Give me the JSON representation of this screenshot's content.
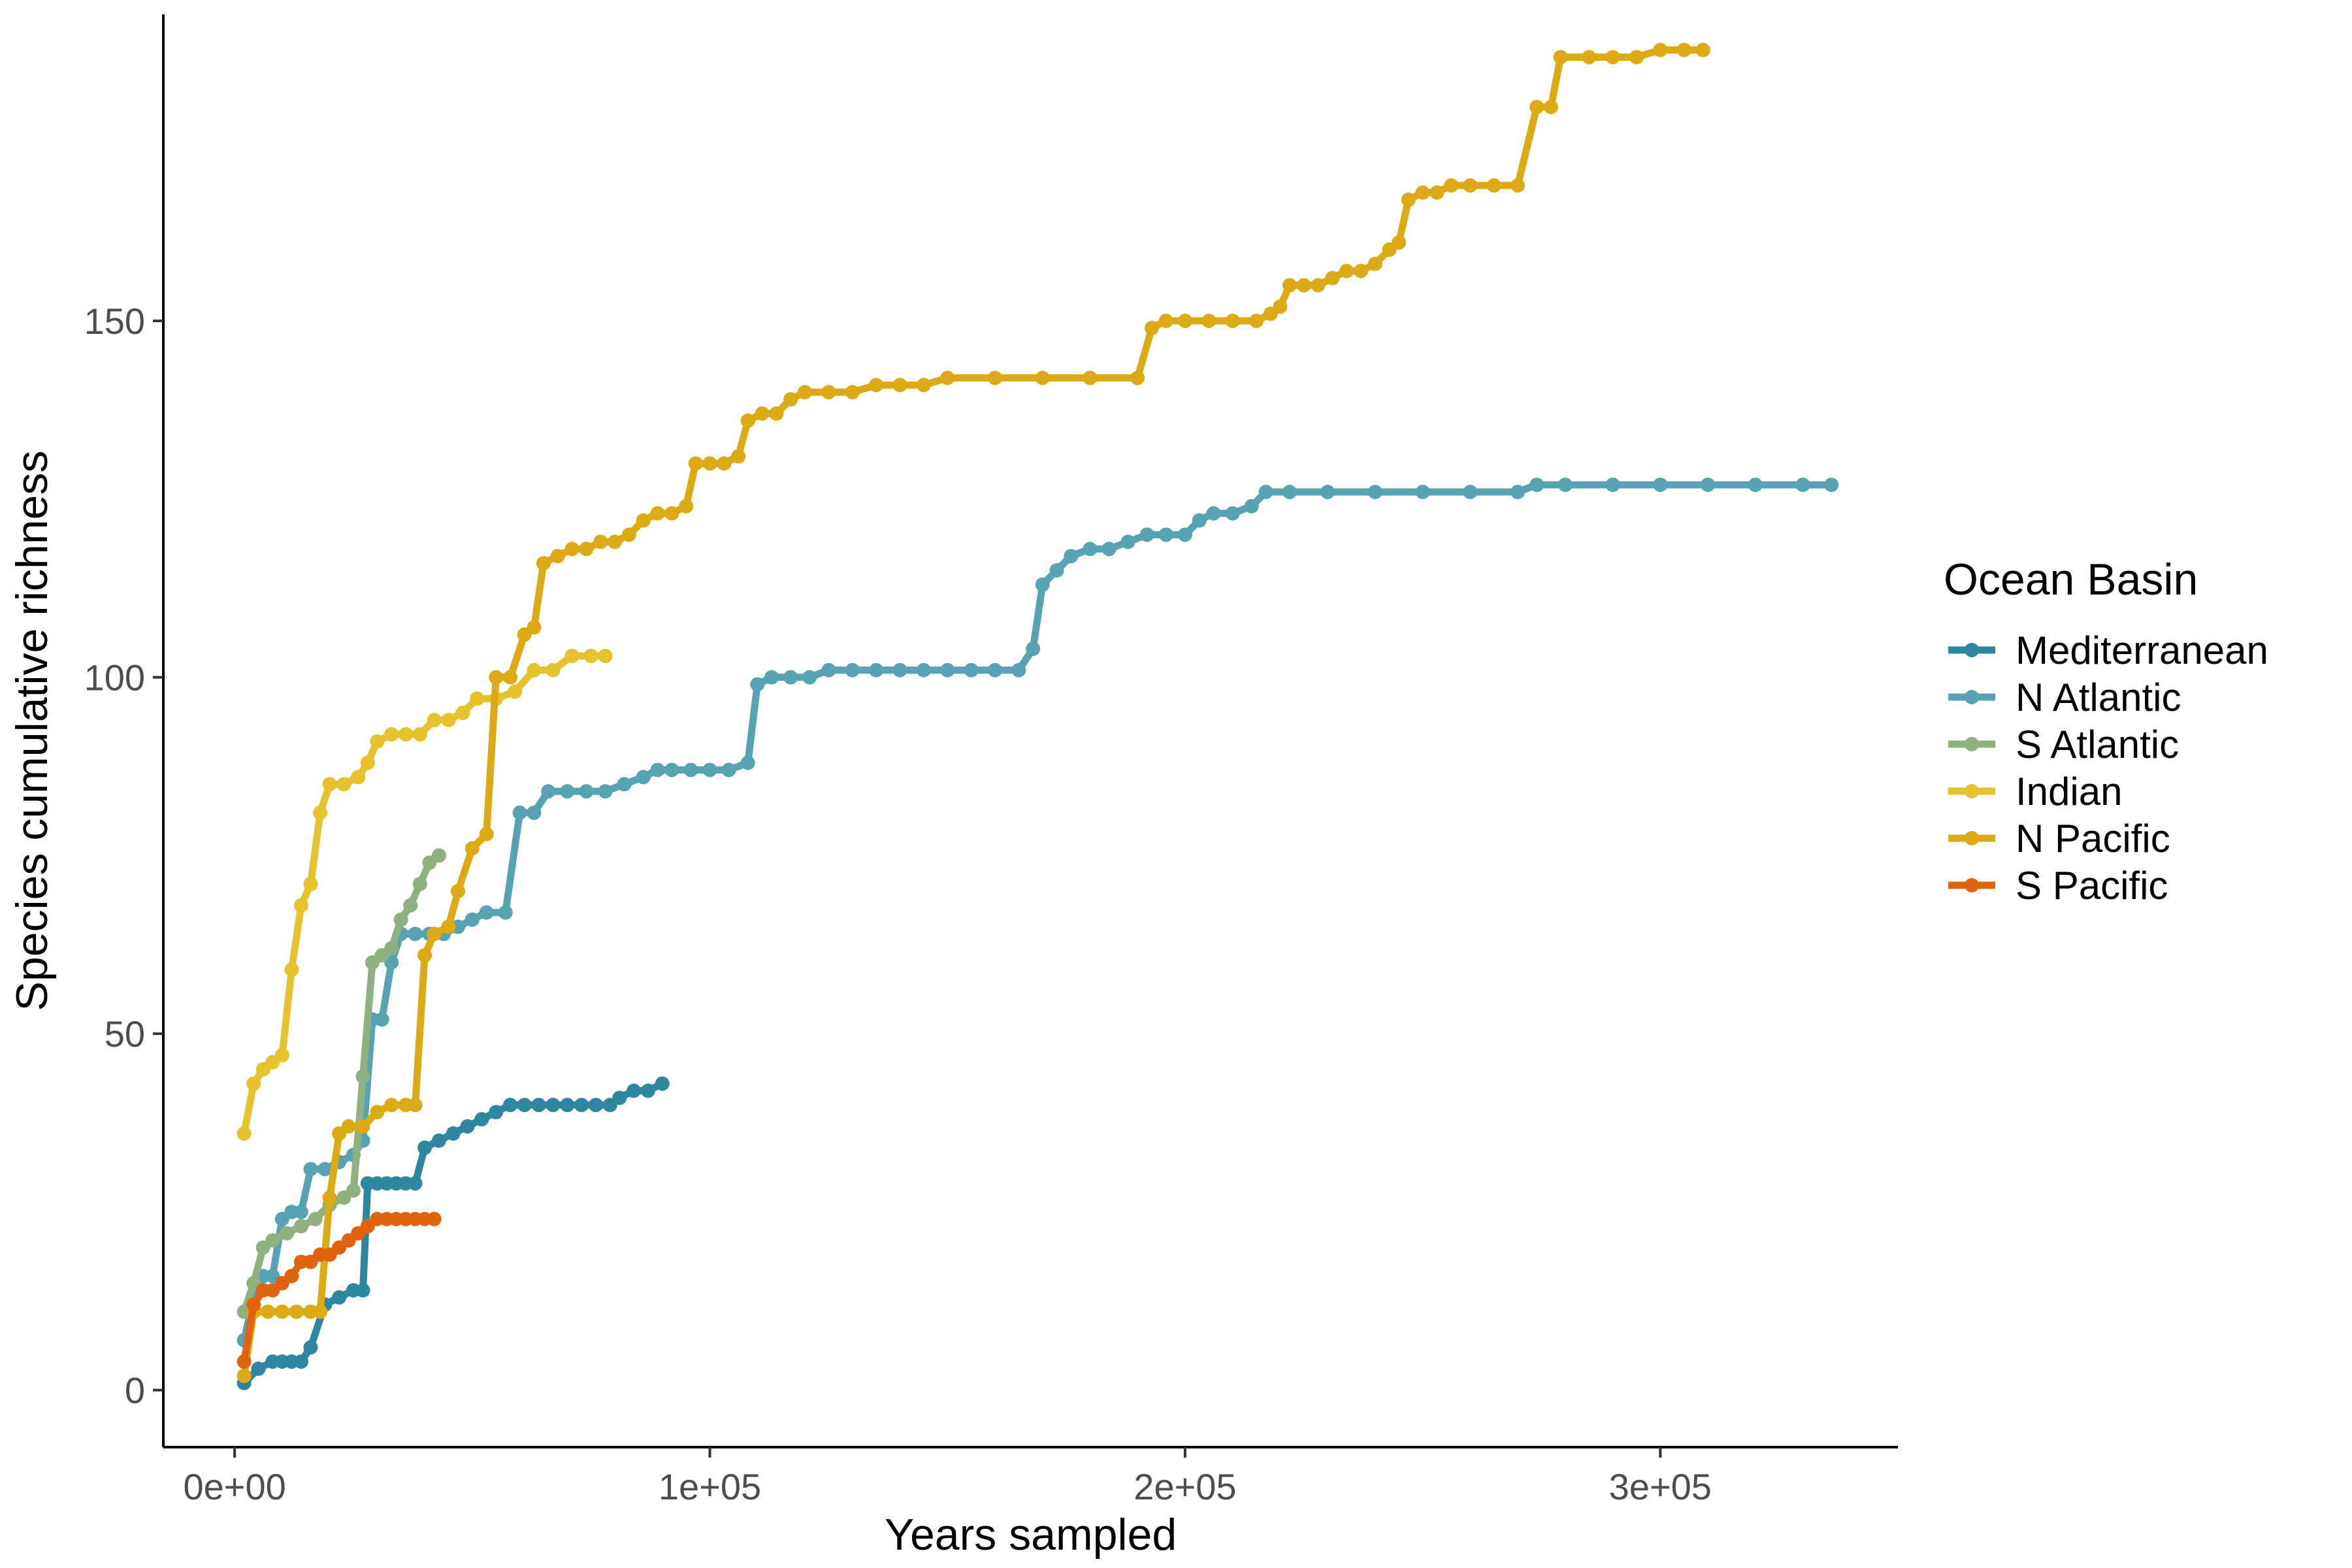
{
  "chart_data": {
    "type": "line",
    "xlabel": "Years sampled",
    "ylabel": "Species cumulative richness",
    "xlim": [
      -15000,
      350000
    ],
    "ylim": [
      -8,
      193
    ],
    "x_ticks": [
      0,
      100000,
      200000,
      300000
    ],
    "x_tick_labels": [
      "0e+00",
      "1e+05",
      "2e+05",
      "3e+05"
    ],
    "y_ticks": [
      0,
      50,
      100,
      150
    ],
    "y_tick_labels": [
      "0",
      "50",
      "100",
      "150"
    ],
    "grid": false,
    "legend": {
      "title": "Ocean Basin",
      "placement": "right"
    },
    "series": [
      {
        "name": "Mediterranean",
        "color": "#2e86a0",
        "points": [
          [
            2000,
            1
          ],
          [
            5000,
            3
          ],
          [
            8000,
            4
          ],
          [
            10000,
            4
          ],
          [
            12000,
            4
          ],
          [
            14000,
            4
          ],
          [
            16000,
            6
          ],
          [
            19000,
            12
          ],
          [
            22000,
            13
          ],
          [
            25000,
            14
          ],
          [
            27000,
            14
          ],
          [
            28000,
            29
          ],
          [
            30000,
            29
          ],
          [
            32000,
            29
          ],
          [
            34000,
            29
          ],
          [
            36000,
            29
          ],
          [
            38000,
            29
          ],
          [
            40000,
            34
          ],
          [
            43000,
            35
          ],
          [
            46000,
            36
          ],
          [
            49000,
            37
          ],
          [
            52000,
            38
          ],
          [
            55000,
            39
          ],
          [
            58000,
            40
          ],
          [
            61000,
            40
          ],
          [
            64000,
            40
          ],
          [
            67000,
            40
          ],
          [
            70000,
            40
          ],
          [
            73000,
            40
          ],
          [
            76000,
            40
          ],
          [
            79000,
            40
          ],
          [
            81000,
            41
          ],
          [
            84000,
            42
          ],
          [
            87000,
            42
          ],
          [
            90000,
            43
          ]
        ]
      },
      {
        "name": "N Atlantic",
        "color": "#57a2b3",
        "points": [
          [
            2000,
            7
          ],
          [
            4000,
            13
          ],
          [
            6000,
            16
          ],
          [
            8000,
            16
          ],
          [
            10000,
            24
          ],
          [
            12000,
            25
          ],
          [
            14000,
            25
          ],
          [
            16000,
            31
          ],
          [
            19000,
            31
          ],
          [
            22000,
            32
          ],
          [
            25000,
            33
          ],
          [
            27000,
            35
          ],
          [
            29000,
            52
          ],
          [
            31000,
            52
          ],
          [
            33000,
            60
          ],
          [
            35000,
            64
          ],
          [
            38000,
            64
          ],
          [
            41000,
            64
          ],
          [
            44000,
            64
          ],
          [
            47000,
            65
          ],
          [
            50000,
            66
          ],
          [
            53000,
            67
          ],
          [
            57000,
            67
          ],
          [
            60000,
            81
          ],
          [
            63000,
            81
          ],
          [
            66000,
            84
          ],
          [
            70000,
            84
          ],
          [
            74000,
            84
          ],
          [
            78000,
            84
          ],
          [
            82000,
            85
          ],
          [
            86000,
            86
          ],
          [
            89000,
            87
          ],
          [
            92000,
            87
          ],
          [
            96000,
            87
          ],
          [
            100000,
            87
          ],
          [
            104000,
            87
          ],
          [
            108000,
            88
          ],
          [
            110000,
            99
          ],
          [
            113000,
            100
          ],
          [
            117000,
            100
          ],
          [
            121000,
            100
          ],
          [
            125000,
            101
          ],
          [
            130000,
            101
          ],
          [
            135000,
            101
          ],
          [
            140000,
            101
          ],
          [
            145000,
            101
          ],
          [
            150000,
            101
          ],
          [
            155000,
            101
          ],
          [
            160000,
            101
          ],
          [
            165000,
            101
          ],
          [
            168000,
            104
          ],
          [
            170000,
            113
          ],
          [
            173000,
            115
          ],
          [
            176000,
            117
          ],
          [
            180000,
            118
          ],
          [
            184000,
            118
          ],
          [
            188000,
            119
          ],
          [
            192000,
            120
          ],
          [
            196000,
            120
          ],
          [
            200000,
            120
          ],
          [
            203000,
            122
          ],
          [
            206000,
            123
          ],
          [
            210000,
            123
          ],
          [
            214000,
            124
          ],
          [
            217000,
            126
          ],
          [
            222000,
            126
          ],
          [
            230000,
            126
          ],
          [
            240000,
            126
          ],
          [
            250000,
            126
          ],
          [
            260000,
            126
          ],
          [
            270000,
            126
          ],
          [
            274000,
            127
          ],
          [
            280000,
            127
          ],
          [
            290000,
            127
          ],
          [
            300000,
            127
          ],
          [
            310000,
            127
          ],
          [
            320000,
            127
          ],
          [
            330000,
            127
          ],
          [
            336000,
            127
          ]
        ]
      },
      {
        "name": "S Atlantic",
        "color": "#8fb07f",
        "points": [
          [
            2000,
            11
          ],
          [
            4000,
            15
          ],
          [
            6000,
            20
          ],
          [
            8000,
            21
          ],
          [
            11000,
            22
          ],
          [
            14000,
            23
          ],
          [
            17000,
            24
          ],
          [
            20000,
            26
          ],
          [
            23000,
            27
          ],
          [
            25000,
            28
          ],
          [
            27000,
            44
          ],
          [
            29000,
            60
          ],
          [
            31000,
            61
          ],
          [
            33000,
            62
          ],
          [
            35000,
            66
          ],
          [
            37000,
            68
          ],
          [
            39000,
            71
          ],
          [
            41000,
            74
          ],
          [
            43000,
            75
          ]
        ]
      },
      {
        "name": "Indian",
        "color": "#e5c22e",
        "points": [
          [
            2000,
            36
          ],
          [
            4000,
            43
          ],
          [
            6000,
            45
          ],
          [
            8000,
            46
          ],
          [
            10000,
            47
          ],
          [
            12000,
            59
          ],
          [
            14000,
            68
          ],
          [
            16000,
            71
          ],
          [
            18000,
            81
          ],
          [
            20000,
            85
          ],
          [
            23000,
            85
          ],
          [
            26000,
            86
          ],
          [
            28000,
            88
          ],
          [
            30000,
            91
          ],
          [
            33000,
            92
          ],
          [
            36000,
            92
          ],
          [
            39000,
            92
          ],
          [
            42000,
            94
          ],
          [
            45000,
            94
          ],
          [
            48000,
            95
          ],
          [
            51000,
            97
          ],
          [
            55000,
            97
          ],
          [
            59000,
            98
          ],
          [
            63000,
            101
          ],
          [
            67000,
            101
          ],
          [
            71000,
            103
          ],
          [
            75000,
            103
          ],
          [
            78000,
            103
          ]
        ]
      },
      {
        "name": "N Pacific",
        "color": "#dcaa15",
        "points": [
          [
            2000,
            2
          ],
          [
            4000,
            11
          ],
          [
            7000,
            11
          ],
          [
            10000,
            11
          ],
          [
            13000,
            11
          ],
          [
            16000,
            11
          ],
          [
            18000,
            11
          ],
          [
            20000,
            27
          ],
          [
            22000,
            36
          ],
          [
            24000,
            37
          ],
          [
            27000,
            37
          ],
          [
            30000,
            39
          ],
          [
            33000,
            40
          ],
          [
            36000,
            40
          ],
          [
            38000,
            40
          ],
          [
            40000,
            61
          ],
          [
            42000,
            64
          ],
          [
            45000,
            65
          ],
          [
            47000,
            70
          ],
          [
            50000,
            76
          ],
          [
            53000,
            78
          ],
          [
            55000,
            100
          ],
          [
            58000,
            100
          ],
          [
            61000,
            106
          ],
          [
            63000,
            107
          ],
          [
            65000,
            116
          ],
          [
            68000,
            117
          ],
          [
            71000,
            118
          ],
          [
            74000,
            118
          ],
          [
            77000,
            119
          ],
          [
            80000,
            119
          ],
          [
            83000,
            120
          ],
          [
            86000,
            122
          ],
          [
            89000,
            123
          ],
          [
            92000,
            123
          ],
          [
            95000,
            124
          ],
          [
            97000,
            130
          ],
          [
            100000,
            130
          ],
          [
            103000,
            130
          ],
          [
            106000,
            131
          ],
          [
            108000,
            136
          ],
          [
            111000,
            137
          ],
          [
            114000,
            137
          ],
          [
            117000,
            139
          ],
          [
            120000,
            140
          ],
          [
            125000,
            140
          ],
          [
            130000,
            140
          ],
          [
            135000,
            141
          ],
          [
            140000,
            141
          ],
          [
            145000,
            141
          ],
          [
            150000,
            142
          ],
          [
            160000,
            142
          ],
          [
            170000,
            142
          ],
          [
            180000,
            142
          ],
          [
            190000,
            142
          ],
          [
            193000,
            149
          ],
          [
            196000,
            150
          ],
          [
            200000,
            150
          ],
          [
            205000,
            150
          ],
          [
            210000,
            150
          ],
          [
            215000,
            150
          ],
          [
            218000,
            151
          ],
          [
            220000,
            152
          ],
          [
            222000,
            155
          ],
          [
            225000,
            155
          ],
          [
            228000,
            155
          ],
          [
            231000,
            156
          ],
          [
            234000,
            157
          ],
          [
            237000,
            157
          ],
          [
            240000,
            158
          ],
          [
            243000,
            160
          ],
          [
            245000,
            161
          ],
          [
            247000,
            167
          ],
          [
            250000,
            168
          ],
          [
            253000,
            168
          ],
          [
            256000,
            169
          ],
          [
            260000,
            169
          ],
          [
            265000,
            169
          ],
          [
            270000,
            169
          ],
          [
            274000,
            180
          ],
          [
            277000,
            180
          ],
          [
            279000,
            187
          ],
          [
            285000,
            187
          ],
          [
            290000,
            187
          ],
          [
            295000,
            187
          ],
          [
            300000,
            188
          ],
          [
            305000,
            188
          ],
          [
            309000,
            188
          ]
        ]
      },
      {
        "name": "S Pacific",
        "color": "#e0630f",
        "points": [
          [
            2000,
            4
          ],
          [
            4000,
            12
          ],
          [
            6000,
            14
          ],
          [
            8000,
            14
          ],
          [
            10000,
            15
          ],
          [
            12000,
            16
          ],
          [
            14000,
            18
          ],
          [
            16000,
            18
          ],
          [
            18000,
            19
          ],
          [
            20000,
            19
          ],
          [
            22000,
            20
          ],
          [
            24000,
            21
          ],
          [
            26000,
            22
          ],
          [
            28000,
            23
          ],
          [
            30000,
            24
          ],
          [
            32000,
            24
          ],
          [
            34000,
            24
          ],
          [
            36000,
            24
          ],
          [
            38000,
            24
          ],
          [
            40000,
            24
          ],
          [
            42000,
            24
          ]
        ]
      }
    ]
  }
}
